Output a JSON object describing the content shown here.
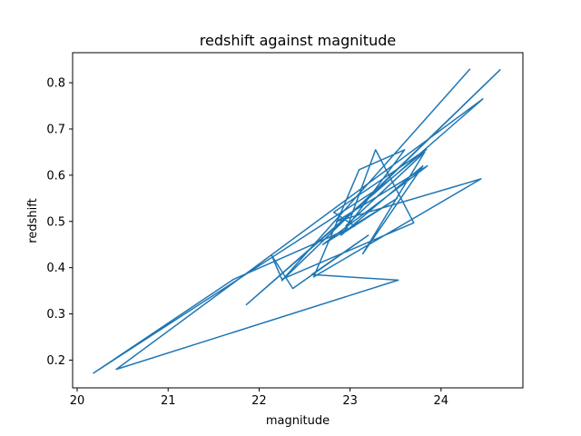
{
  "chart_data": {
    "type": "line",
    "title": "redshift against magnitude",
    "xlabel": "magnitude",
    "ylabel": "redshift",
    "xlim": [
      19.95,
      24.9
    ],
    "ylim": [
      0.14,
      0.865
    ],
    "x_ticks": [
      20,
      21,
      22,
      23,
      24
    ],
    "y_ticks": [
      0.2,
      0.3,
      0.4,
      0.5,
      0.6,
      0.7,
      0.8
    ],
    "grid": false,
    "color": "#1f77b4",
    "series": [
      {
        "x": [
          24.32,
          22.25,
          24.65,
          23.3,
          20.18,
          21.72,
          23.05,
          22.82,
          23.84,
          23.25,
          21.86,
          24.46,
          20.43,
          23.53,
          22.58,
          23.2,
          22.37,
          22.14,
          22.25,
          23.7,
          23.28,
          22.95,
          23.52,
          22.7,
          23.85,
          22.85,
          24.44,
          22.6,
          23.1,
          23.6,
          22.9,
          23.8,
          23.14,
          23.82,
          22.95
        ],
        "y": [
          0.83,
          0.372,
          0.828,
          0.57,
          0.172,
          0.375,
          0.49,
          0.52,
          0.656,
          0.56,
          0.32,
          0.765,
          0.18,
          0.373,
          0.385,
          0.47,
          0.355,
          0.426,
          0.375,
          0.497,
          0.655,
          0.478,
          0.55,
          0.45,
          0.62,
          0.5,
          0.592,
          0.38,
          0.612,
          0.655,
          0.47,
          0.62,
          0.43,
          0.65,
          0.49
        ]
      }
    ]
  }
}
